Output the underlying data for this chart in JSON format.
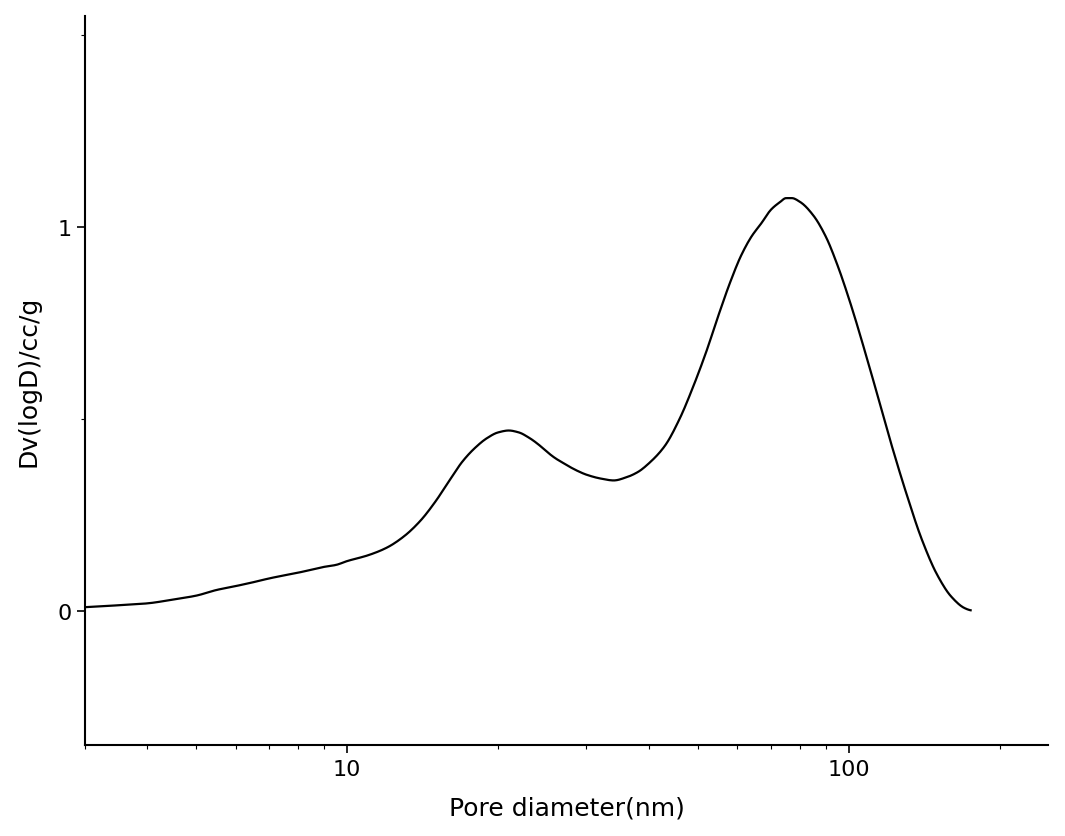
{
  "xlabel": "Pore diameter(nm)",
  "ylabel": "Dv(logD)/cc/g",
  "xlim_log": [
    3,
    250
  ],
  "ylim": [
    -0.35,
    1.55
  ],
  "yticks": [
    0,
    1
  ],
  "line_color": "#000000",
  "line_width": 1.6,
  "background_color": "#ffffff",
  "curve_points": [
    [
      3.0,
      0.01
    ],
    [
      3.5,
      0.015
    ],
    [
      4.0,
      0.02
    ],
    [
      4.5,
      0.03
    ],
    [
      5.0,
      0.04
    ],
    [
      5.5,
      0.055
    ],
    [
      6.0,
      0.065
    ],
    [
      6.5,
      0.075
    ],
    [
      7.0,
      0.085
    ],
    [
      7.5,
      0.093
    ],
    [
      8.0,
      0.1
    ],
    [
      8.5,
      0.108
    ],
    [
      9.0,
      0.115
    ],
    [
      9.5,
      0.12
    ],
    [
      10.0,
      0.13
    ],
    [
      11.0,
      0.145
    ],
    [
      12.0,
      0.165
    ],
    [
      13.0,
      0.195
    ],
    [
      14.0,
      0.235
    ],
    [
      15.0,
      0.285
    ],
    [
      16.0,
      0.34
    ],
    [
      17.0,
      0.39
    ],
    [
      18.0,
      0.425
    ],
    [
      19.0,
      0.45
    ],
    [
      20.0,
      0.465
    ],
    [
      21.0,
      0.47
    ],
    [
      22.0,
      0.465
    ],
    [
      23.0,
      0.452
    ],
    [
      24.0,
      0.435
    ],
    [
      25.0,
      0.415
    ],
    [
      26.0,
      0.398
    ],
    [
      27.0,
      0.385
    ],
    [
      28.0,
      0.373
    ],
    [
      29.0,
      0.363
    ],
    [
      30.0,
      0.355
    ],
    [
      32.0,
      0.345
    ],
    [
      34.0,
      0.34
    ],
    [
      36.0,
      0.348
    ],
    [
      38.0,
      0.362
    ],
    [
      40.0,
      0.385
    ],
    [
      43.0,
      0.43
    ],
    [
      46.0,
      0.5
    ],
    [
      49.0,
      0.585
    ],
    [
      52.0,
      0.675
    ],
    [
      55.0,
      0.77
    ],
    [
      58.0,
      0.855
    ],
    [
      61.0,
      0.925
    ],
    [
      64.0,
      0.975
    ],
    [
      67.0,
      1.01
    ],
    [
      70.0,
      1.045
    ],
    [
      73.0,
      1.065
    ],
    [
      75.0,
      1.075
    ],
    [
      77.0,
      1.075
    ],
    [
      80.0,
      1.065
    ],
    [
      85.0,
      1.03
    ],
    [
      90.0,
      0.975
    ],
    [
      95.0,
      0.9
    ],
    [
      100.0,
      0.815
    ],
    [
      110.0,
      0.635
    ],
    [
      120.0,
      0.46
    ],
    [
      130.0,
      0.31
    ],
    [
      140.0,
      0.185
    ],
    [
      150.0,
      0.095
    ],
    [
      160.0,
      0.038
    ],
    [
      170.0,
      0.008
    ],
    [
      175.0,
      0.002
    ]
  ]
}
